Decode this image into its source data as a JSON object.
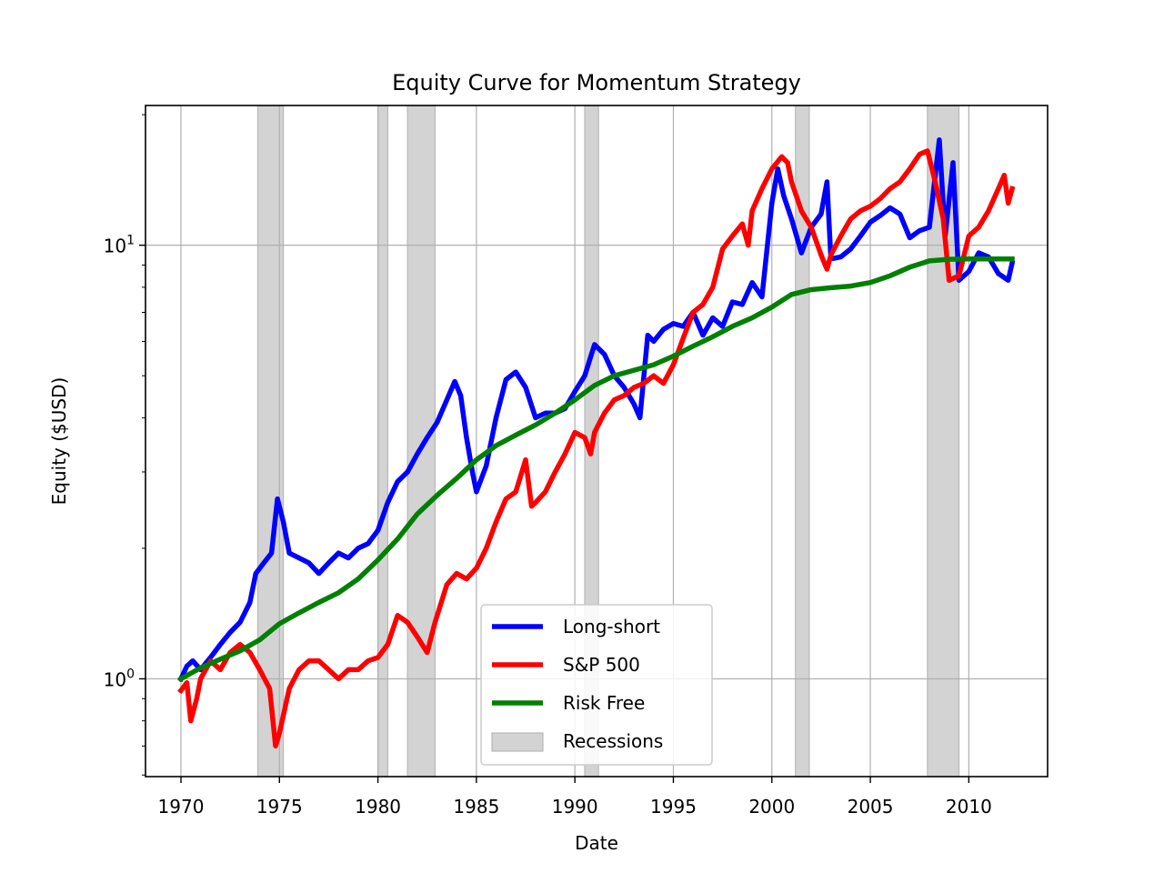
{
  "chart_data": {
    "type": "line",
    "title": "Equity Curve for Momentum Strategy",
    "xlabel": "Date",
    "ylabel": "Equity ($USD)",
    "x_scale": "date",
    "y_scale": "log",
    "xlim": [
      1968.2,
      2014.0
    ],
    "ylim": [
      0.595,
      21.0
    ],
    "x_ticks": [
      1970,
      1975,
      1980,
      1985,
      1990,
      1995,
      2000,
      2005,
      2010
    ],
    "y_ticks": [
      {
        "value": 1,
        "label_base": "10",
        "label_exp": "0"
      },
      {
        "value": 10,
        "label_base": "10",
        "label_exp": "1"
      }
    ],
    "grid": true,
    "legend_position": "lower center",
    "recessions": [
      [
        1973.9,
        1975.2
      ],
      [
        1980.0,
        1980.5
      ],
      [
        1981.5,
        1982.9
      ],
      [
        1990.5,
        1991.2
      ],
      [
        2001.2,
        2001.9
      ],
      [
        2007.9,
        2009.5
      ]
    ],
    "recession_color": "#d3d3d3",
    "series": [
      {
        "name": "Long-short",
        "color": "#0000ff",
        "points": [
          [
            1970.0,
            1.0
          ],
          [
            1970.3,
            1.07
          ],
          [
            1970.6,
            1.1
          ],
          [
            1971.0,
            1.05
          ],
          [
            1971.5,
            1.12
          ],
          [
            1972.0,
            1.2
          ],
          [
            1972.5,
            1.28
          ],
          [
            1973.0,
            1.35
          ],
          [
            1973.5,
            1.5
          ],
          [
            1973.8,
            1.75
          ],
          [
            1974.2,
            1.85
          ],
          [
            1974.6,
            1.95
          ],
          [
            1974.9,
            2.6
          ],
          [
            1975.2,
            2.3
          ],
          [
            1975.5,
            1.95
          ],
          [
            1976.0,
            1.9
          ],
          [
            1976.5,
            1.85
          ],
          [
            1977.0,
            1.75
          ],
          [
            1977.5,
            1.85
          ],
          [
            1978.0,
            1.95
          ],
          [
            1978.5,
            1.9
          ],
          [
            1979.0,
            2.0
          ],
          [
            1979.5,
            2.05
          ],
          [
            1980.0,
            2.2
          ],
          [
            1980.5,
            2.55
          ],
          [
            1981.0,
            2.85
          ],
          [
            1981.5,
            3.0
          ],
          [
            1982.0,
            3.3
          ],
          [
            1982.5,
            3.6
          ],
          [
            1983.0,
            3.9
          ],
          [
            1983.5,
            4.4
          ],
          [
            1983.9,
            4.85
          ],
          [
            1984.2,
            4.5
          ],
          [
            1984.5,
            3.6
          ],
          [
            1984.8,
            3.0
          ],
          [
            1985.0,
            2.7
          ],
          [
            1985.5,
            3.1
          ],
          [
            1986.0,
            4.0
          ],
          [
            1986.5,
            4.9
          ],
          [
            1987.0,
            5.1
          ],
          [
            1987.5,
            4.7
          ],
          [
            1988.0,
            4.0
          ],
          [
            1988.5,
            4.1
          ],
          [
            1989.0,
            4.1
          ],
          [
            1989.5,
            4.2
          ],
          [
            1990.0,
            4.6
          ],
          [
            1990.5,
            5.0
          ],
          [
            1991.0,
            5.9
          ],
          [
            1991.5,
            5.6
          ],
          [
            1992.0,
            5.0
          ],
          [
            1992.5,
            4.7
          ],
          [
            1993.0,
            4.3
          ],
          [
            1993.3,
            4.0
          ],
          [
            1993.7,
            6.2
          ],
          [
            1994.0,
            6.0
          ],
          [
            1994.5,
            6.4
          ],
          [
            1995.0,
            6.6
          ],
          [
            1995.5,
            6.5
          ],
          [
            1996.0,
            7.0
          ],
          [
            1996.5,
            6.2
          ],
          [
            1997.0,
            6.8
          ],
          [
            1997.5,
            6.5
          ],
          [
            1998.0,
            7.4
          ],
          [
            1998.5,
            7.3
          ],
          [
            1999.0,
            8.2
          ],
          [
            1999.5,
            7.6
          ],
          [
            2000.0,
            12.5
          ],
          [
            2000.3,
            15.0
          ],
          [
            2000.6,
            13.0
          ],
          [
            2001.0,
            11.5
          ],
          [
            2001.5,
            9.6
          ],
          [
            2002.0,
            11.0
          ],
          [
            2002.5,
            11.8
          ],
          [
            2002.8,
            14.0
          ],
          [
            2003.0,
            9.3
          ],
          [
            2003.5,
            9.4
          ],
          [
            2004.0,
            9.8
          ],
          [
            2004.5,
            10.5
          ],
          [
            2005.0,
            11.3
          ],
          [
            2005.5,
            11.7
          ],
          [
            2006.0,
            12.2
          ],
          [
            2006.5,
            11.8
          ],
          [
            2007.0,
            10.4
          ],
          [
            2007.5,
            10.8
          ],
          [
            2008.0,
            11.0
          ],
          [
            2008.5,
            17.5
          ],
          [
            2008.8,
            10.5
          ],
          [
            2009.2,
            15.5
          ],
          [
            2009.5,
            8.3
          ],
          [
            2010.0,
            8.7
          ],
          [
            2010.5,
            9.6
          ],
          [
            2011.0,
            9.4
          ],
          [
            2011.5,
            8.6
          ],
          [
            2012.0,
            8.3
          ],
          [
            2012.2,
            9.1
          ]
        ]
      },
      {
        "name": "S&P 500",
        "color": "#ff0000",
        "points": [
          [
            1970.0,
            0.94
          ],
          [
            1970.3,
            0.98
          ],
          [
            1970.5,
            0.8
          ],
          [
            1970.8,
            0.9
          ],
          [
            1971.0,
            1.0
          ],
          [
            1971.5,
            1.1
          ],
          [
            1972.0,
            1.05
          ],
          [
            1972.5,
            1.15
          ],
          [
            1973.0,
            1.2
          ],
          [
            1973.5,
            1.15
          ],
          [
            1974.0,
            1.05
          ],
          [
            1974.5,
            0.95
          ],
          [
            1974.8,
            0.7
          ],
          [
            1975.0,
            0.75
          ],
          [
            1975.5,
            0.95
          ],
          [
            1976.0,
            1.05
          ],
          [
            1976.5,
            1.1
          ],
          [
            1977.0,
            1.1
          ],
          [
            1977.5,
            1.05
          ],
          [
            1978.0,
            1.0
          ],
          [
            1978.5,
            1.05
          ],
          [
            1979.0,
            1.05
          ],
          [
            1979.5,
            1.1
          ],
          [
            1980.0,
            1.12
          ],
          [
            1980.5,
            1.2
          ],
          [
            1981.0,
            1.4
          ],
          [
            1981.5,
            1.35
          ],
          [
            1982.0,
            1.25
          ],
          [
            1982.5,
            1.15
          ],
          [
            1982.9,
            1.35
          ],
          [
            1983.5,
            1.65
          ],
          [
            1984.0,
            1.75
          ],
          [
            1984.5,
            1.7
          ],
          [
            1985.0,
            1.8
          ],
          [
            1985.5,
            2.0
          ],
          [
            1986.0,
            2.3
          ],
          [
            1986.5,
            2.6
          ],
          [
            1987.0,
            2.7
          ],
          [
            1987.5,
            3.2
          ],
          [
            1987.8,
            2.5
          ],
          [
            1988.0,
            2.55
          ],
          [
            1988.5,
            2.7
          ],
          [
            1989.0,
            3.0
          ],
          [
            1989.5,
            3.3
          ],
          [
            1990.0,
            3.7
          ],
          [
            1990.5,
            3.6
          ],
          [
            1990.8,
            3.3
          ],
          [
            1991.0,
            3.7
          ],
          [
            1991.5,
            4.1
          ],
          [
            1992.0,
            4.4
          ],
          [
            1992.5,
            4.5
          ],
          [
            1993.0,
            4.7
          ],
          [
            1993.5,
            4.8
          ],
          [
            1994.0,
            5.0
          ],
          [
            1994.5,
            4.8
          ],
          [
            1995.0,
            5.3
          ],
          [
            1995.5,
            6.1
          ],
          [
            1996.0,
            7.0
          ],
          [
            1996.5,
            7.3
          ],
          [
            1997.0,
            8.0
          ],
          [
            1997.5,
            9.8
          ],
          [
            1998.0,
            10.5
          ],
          [
            1998.5,
            11.2
          ],
          [
            1998.8,
            10.0
          ],
          [
            1999.0,
            12.0
          ],
          [
            1999.5,
            13.5
          ],
          [
            2000.0,
            15.0
          ],
          [
            2000.5,
            16.0
          ],
          [
            2000.8,
            15.5
          ],
          [
            2001.0,
            14.0
          ],
          [
            2001.5,
            12.0
          ],
          [
            2002.0,
            11.0
          ],
          [
            2002.5,
            9.5
          ],
          [
            2002.8,
            8.8
          ],
          [
            2003.0,
            9.5
          ],
          [
            2003.5,
            10.5
          ],
          [
            2004.0,
            11.5
          ],
          [
            2004.5,
            12.0
          ],
          [
            2005.0,
            12.3
          ],
          [
            2005.5,
            12.8
          ],
          [
            2006.0,
            13.5
          ],
          [
            2006.5,
            14.0
          ],
          [
            2007.0,
            15.0
          ],
          [
            2007.5,
            16.2
          ],
          [
            2007.9,
            16.5
          ],
          [
            2008.3,
            14.0
          ],
          [
            2008.7,
            11.5
          ],
          [
            2009.0,
            8.3
          ],
          [
            2009.5,
            8.5
          ],
          [
            2010.0,
            10.5
          ],
          [
            2010.5,
            11.0
          ],
          [
            2011.0,
            12.0
          ],
          [
            2011.5,
            13.5
          ],
          [
            2011.8,
            14.5
          ],
          [
            2012.0,
            12.5
          ],
          [
            2012.2,
            13.5
          ]
        ]
      },
      {
        "name": "Risk Free",
        "color": "#008000",
        "points": [
          [
            1970.0,
            1.0
          ],
          [
            1971.0,
            1.06
          ],
          [
            1972.0,
            1.11
          ],
          [
            1973.0,
            1.16
          ],
          [
            1974.0,
            1.23
          ],
          [
            1975.0,
            1.34
          ],
          [
            1976.0,
            1.42
          ],
          [
            1977.0,
            1.5
          ],
          [
            1978.0,
            1.58
          ],
          [
            1979.0,
            1.7
          ],
          [
            1980.0,
            1.88
          ],
          [
            1981.0,
            2.1
          ],
          [
            1982.0,
            2.4
          ],
          [
            1983.0,
            2.65
          ],
          [
            1984.0,
            2.9
          ],
          [
            1985.0,
            3.2
          ],
          [
            1986.0,
            3.45
          ],
          [
            1987.0,
            3.65
          ],
          [
            1988.0,
            3.85
          ],
          [
            1989.0,
            4.1
          ],
          [
            1990.0,
            4.4
          ],
          [
            1991.0,
            4.75
          ],
          [
            1992.0,
            5.0
          ],
          [
            1993.0,
            5.15
          ],
          [
            1994.0,
            5.3
          ],
          [
            1995.0,
            5.55
          ],
          [
            1996.0,
            5.85
          ],
          [
            1997.0,
            6.15
          ],
          [
            1998.0,
            6.5
          ],
          [
            1999.0,
            6.8
          ],
          [
            2000.0,
            7.2
          ],
          [
            2001.0,
            7.7
          ],
          [
            2002.0,
            7.9
          ],
          [
            2003.0,
            7.98
          ],
          [
            2004.0,
            8.05
          ],
          [
            2005.0,
            8.2
          ],
          [
            2006.0,
            8.5
          ],
          [
            2007.0,
            8.9
          ],
          [
            2008.0,
            9.2
          ],
          [
            2009.0,
            9.28
          ],
          [
            2010.0,
            9.3
          ],
          [
            2011.0,
            9.3
          ],
          [
            2012.0,
            9.3
          ],
          [
            2012.2,
            9.3
          ]
        ]
      }
    ],
    "legend": [
      {
        "label": "Long-short",
        "color": "#0000ff",
        "kind": "line"
      },
      {
        "label": "S&P 500",
        "color": "#ff0000",
        "kind": "line"
      },
      {
        "label": "Risk Free",
        "color": "#008000",
        "kind": "line"
      },
      {
        "label": "Recessions",
        "color": "#d3d3d3",
        "kind": "patch"
      }
    ]
  }
}
